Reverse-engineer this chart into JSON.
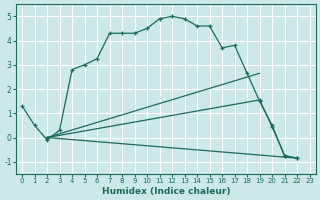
{
  "title": "",
  "xlabel": "Humidex (Indice chaleur)",
  "ylabel": "",
  "bg_color": "#cce8e8",
  "line_color": "#1a6b5a",
  "grid_color": "#ffffff",
  "ylim": [
    -1.5,
    5.5
  ],
  "xlim": [
    -0.5,
    23.5
  ],
  "yticks": [
    -1,
    0,
    1,
    2,
    3,
    4,
    5
  ],
  "xticks": [
    0,
    1,
    2,
    3,
    4,
    5,
    6,
    7,
    8,
    9,
    10,
    11,
    12,
    13,
    14,
    15,
    16,
    17,
    18,
    19,
    20,
    21,
    22,
    23
  ],
  "series": [
    {
      "x": [
        0,
        1,
        2,
        3,
        4,
        5,
        6,
        7,
        8,
        9,
        10,
        11,
        12,
        13,
        14,
        15,
        16,
        17,
        18,
        19,
        20,
        21,
        22
      ],
      "y": [
        1.3,
        0.5,
        -0.1,
        0.3,
        2.8,
        3.0,
        3.25,
        4.3,
        4.3,
        4.3,
        4.5,
        4.9,
        5.0,
        4.9,
        4.6,
        4.6,
        3.7,
        3.8,
        2.65,
        1.5,
        0.5,
        -0.75,
        -0.85
      ],
      "marker": true
    },
    {
      "x": [
        2,
        19,
        20,
        21,
        22
      ],
      "y": [
        0.0,
        1.55,
        0.45,
        -0.75,
        -0.85
      ],
      "marker": true
    },
    {
      "x": [
        2,
        19
      ],
      "y": [
        0.0,
        2.65
      ],
      "marker": false
    },
    {
      "x": [
        2,
        22
      ],
      "y": [
        0.0,
        -0.85
      ],
      "marker": false
    }
  ]
}
